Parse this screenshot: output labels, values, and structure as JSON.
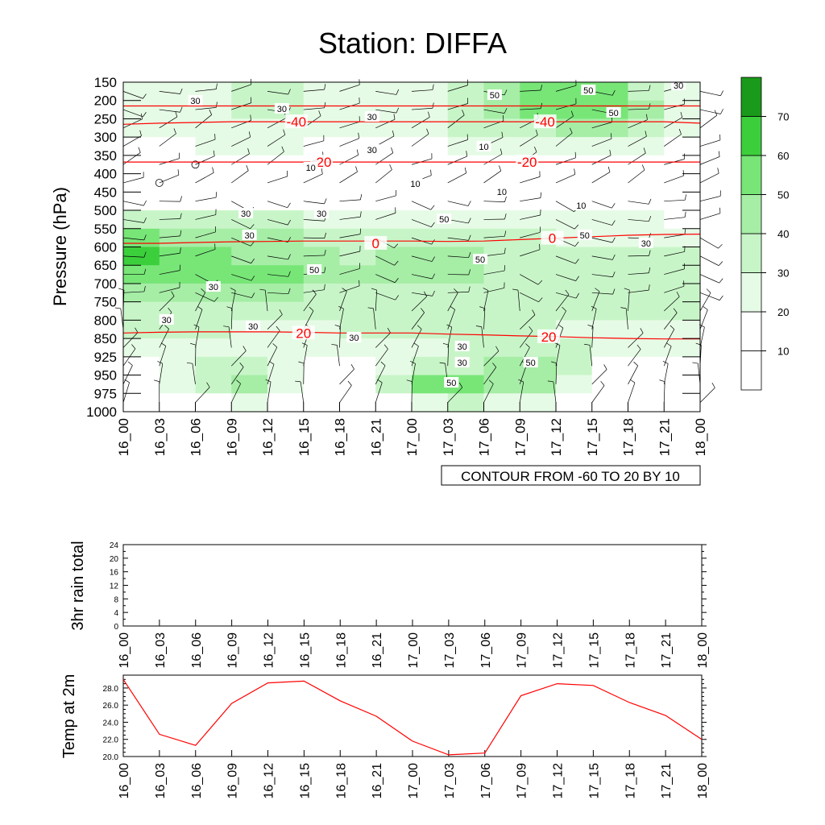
{
  "title": "Station: DIFFA",
  "time_labels": [
    "16_00",
    "16_03",
    "16_06",
    "16_09",
    "16_12",
    "16_15",
    "16_18",
    "16_21",
    "17_00",
    "17_03",
    "17_06",
    "17_09",
    "17_12",
    "17_15",
    "17_18",
    "17_21",
    "18_00"
  ],
  "colors": {
    "fills": [
      "#ffffff",
      "#ffffff",
      "#e6fbe6",
      "#c8f5c8",
      "#a6eda6",
      "#77e677",
      "#3ccf3c",
      "#1a9a1a"
    ],
    "temp_contour": "#ff0000",
    "rh_contour": "#000000",
    "temp_line": "#ff0000"
  },
  "chart_data": [
    {
      "type": "heatmap",
      "name": "cross-section",
      "title": "Station: DIFFA",
      "ylabel": "Pressure (hPa)",
      "xlabel": "",
      "x": [
        "16_00",
        "16_03",
        "16_06",
        "16_09",
        "16_12",
        "16_15",
        "16_18",
        "16_21",
        "17_00",
        "17_03",
        "17_06",
        "17_09",
        "17_12",
        "17_15",
        "17_18",
        "17_21",
        "18_00"
      ],
      "y_levels": [
        "150",
        "200",
        "250",
        "300",
        "350",
        "400",
        "450",
        "500",
        "550",
        "600",
        "650",
        "700",
        "750",
        "800",
        "850",
        "925",
        "950",
        "975",
        "1000"
      ],
      "z": [
        [
          20,
          20,
          20,
          30,
          35,
          30,
          25,
          20,
          20,
          20,
          30,
          40,
          45,
          45,
          30,
          30,
          25
        ],
        [
          20,
          20,
          25,
          30,
          35,
          30,
          25,
          20,
          20,
          25,
          45,
          55,
          60,
          60,
          65,
          30,
          25
        ],
        [
          30,
          30,
          30,
          30,
          35,
          30,
          25,
          25,
          25,
          30,
          40,
          45,
          50,
          50,
          50,
          30,
          25
        ],
        [
          20,
          20,
          25,
          25,
          25,
          25,
          20,
          20,
          20,
          25,
          30,
          30,
          30,
          30,
          30,
          25,
          20
        ],
        [
          10,
          10,
          15,
          15,
          15,
          15,
          15,
          10,
          10,
          15,
          15,
          15,
          15,
          15,
          15,
          10,
          10
        ],
        [
          0,
          5,
          10,
          10,
          10,
          10,
          10,
          10,
          10,
          10,
          10,
          10,
          10,
          10,
          10,
          5,
          5
        ],
        [
          10,
          10,
          10,
          10,
          10,
          10,
          10,
          10,
          10,
          10,
          10,
          10,
          10,
          10,
          10,
          10,
          10
        ],
        [
          20,
          20,
          20,
          25,
          25,
          25,
          20,
          20,
          20,
          20,
          20,
          20,
          20,
          15,
          15,
          15,
          15
        ],
        [
          40,
          40,
          40,
          40,
          40,
          35,
          30,
          30,
          30,
          30,
          30,
          30,
          30,
          25,
          25,
          25,
          20
        ],
        [
          60,
          60,
          50,
          45,
          45,
          45,
          40,
          35,
          40,
          40,
          40,
          40,
          30,
          30,
          30,
          30,
          30
        ],
        [
          65,
          60,
          55,
          50,
          50,
          50,
          40,
          40,
          50,
          50,
          40,
          35,
          30,
          30,
          30,
          30,
          30
        ],
        [
          50,
          50,
          50,
          50,
          50,
          50,
          40,
          40,
          45,
          45,
          40,
          35,
          30,
          30,
          30,
          30,
          30
        ],
        [
          30,
          30,
          30,
          30,
          30,
          30,
          30,
          30,
          30,
          30,
          30,
          30,
          30,
          30,
          30,
          30,
          30
        ],
        [
          30,
          30,
          30,
          30,
          30,
          30,
          30,
          30,
          30,
          30,
          30,
          30,
          30,
          30,
          30,
          30,
          30
        ],
        [
          30,
          30,
          30,
          30,
          25,
          25,
          30,
          30,
          30,
          30,
          30,
          30,
          30,
          25,
          25,
          25,
          25
        ],
        [
          20,
          20,
          20,
          30,
          30,
          20,
          20,
          20,
          20,
          30,
          30,
          40,
          45,
          35,
          20,
          20,
          20
        ],
        [
          0,
          20,
          30,
          40,
          40,
          0,
          0,
          30,
          40,
          45,
          45,
          45,
          40,
          0,
          0,
          30,
          0
        ],
        [
          0,
          0,
          30,
          40,
          40,
          0,
          0,
          30,
          45,
          70,
          55,
          45,
          40,
          0,
          0,
          30,
          0
        ],
        [
          0,
          0,
          0,
          0,
          0,
          0,
          0,
          0,
          0,
          0,
          0,
          0,
          0,
          0,
          0,
          0,
          0
        ]
      ],
      "fill_levels": [
        10,
        20,
        30,
        40,
        50,
        60,
        70
      ],
      "colorbar_labels": [
        "10",
        "20",
        "30",
        "40",
        "50",
        "60",
        "70"
      ],
      "rh_contour_labels": [
        "30",
        "30",
        "30",
        "50",
        "50",
        "50",
        "30",
        "10",
        "10",
        "10",
        "10",
        "10",
        "30",
        "30",
        "30",
        "50",
        "50",
        "30",
        "30",
        "50",
        "50",
        "30",
        "30",
        "30",
        "30",
        "30",
        "30",
        "50",
        "50"
      ],
      "temperature_contours": [
        {
          "label": "-40",
          "p": [
            215,
            215,
            215,
            215,
            215,
            215,
            215,
            215,
            215,
            215,
            215,
            215,
            215,
            215,
            215,
            215,
            215
          ]
        },
        {
          "label": "-40",
          "p": [
            265,
            262,
            260,
            258,
            258,
            258,
            258,
            258,
            258,
            258,
            258,
            258,
            258,
            258,
            258,
            258,
            262
          ]
        },
        {
          "label": "-20",
          "p": [
            368,
            368,
            368,
            368,
            368,
            368,
            368,
            368,
            368,
            368,
            368,
            368,
            368,
            368,
            368,
            368,
            368
          ]
        },
        {
          "label": "0",
          "p": [
            590,
            590,
            588,
            586,
            585,
            584,
            584,
            584,
            584,
            585,
            584,
            580,
            576,
            572,
            568,
            566,
            565
          ]
        },
        {
          "label": "20",
          "p": [
            835,
            833,
            832,
            832,
            832,
            833,
            835,
            835,
            835,
            838,
            840,
            843,
            845,
            848,
            850,
            852,
            852
          ]
        }
      ],
      "temp_labels_shown": [
        "-40",
        "-40",
        "-20",
        "-20",
        "0",
        "0",
        "20",
        "20"
      ],
      "footer": "CONTOUR FROM -60 TO 20 BY 10"
    },
    {
      "type": "bar",
      "name": "rain",
      "ylabel": "3hr rain total",
      "x": [
        "16_00",
        "16_03",
        "16_06",
        "16_09",
        "16_12",
        "16_15",
        "16_18",
        "16_21",
        "17_00",
        "17_03",
        "17_06",
        "17_09",
        "17_12",
        "17_15",
        "17_18",
        "17_21",
        "18_00"
      ],
      "values": [
        0,
        0,
        0,
        0,
        0,
        0,
        0,
        0,
        0,
        0,
        0,
        0,
        0,
        0,
        0,
        0,
        0
      ],
      "ylim": [
        0,
        24
      ],
      "yticks": [
        "0",
        "4",
        "8",
        "12",
        "16",
        "20",
        "24"
      ]
    },
    {
      "type": "line",
      "name": "temperature",
      "ylabel": "Temp at 2m",
      "x": [
        "16_00",
        "16_03",
        "16_06",
        "16_09",
        "16_12",
        "16_15",
        "16_18",
        "16_21",
        "17_00",
        "17_03",
        "17_06",
        "17_09",
        "17_12",
        "17_15",
        "17_18",
        "17_21",
        "18_00"
      ],
      "values": [
        29.0,
        22.6,
        21.3,
        26.2,
        28.6,
        28.8,
        26.5,
        24.7,
        21.8,
        20.2,
        20.4,
        27.1,
        28.5,
        28.3,
        26.3,
        24.8,
        22.0
      ],
      "ylim": [
        20.0,
        29.5
      ],
      "yticks": [
        "20.0",
        "22.0",
        "24.0",
        "26.0",
        "28.0"
      ]
    }
  ]
}
